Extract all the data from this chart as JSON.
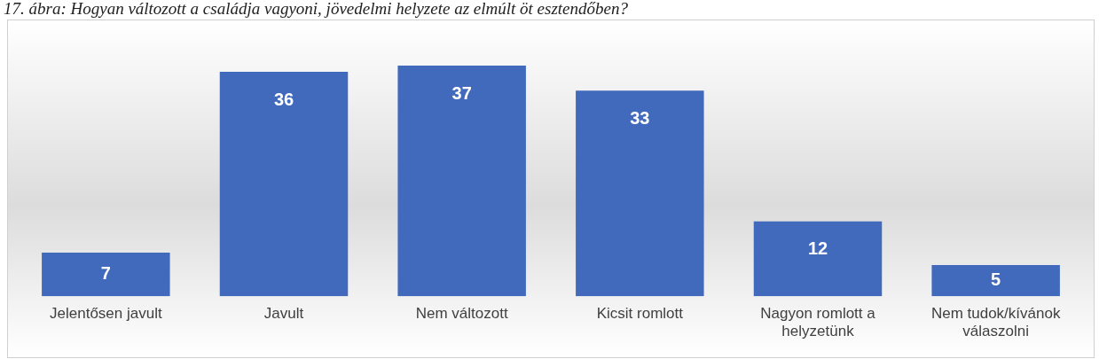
{
  "chart_data": {
    "type": "bar",
    "title": "17. ábra: Hogyan változott a családja vagyoni, jövedelmi helyzete az elmúlt öt esztendőben?",
    "categories": [
      "Jelentősen javult",
      "Javult",
      "Nem változott",
      "Kicsit romlott",
      "Nagyon romlott a helyzetünk",
      "Nem tudok/kívánok válaszolni"
    ],
    "values": [
      7,
      36,
      37,
      33,
      12,
      5
    ],
    "color": "#4169bc",
    "data_labels": true,
    "grid": false,
    "legend": false
  }
}
